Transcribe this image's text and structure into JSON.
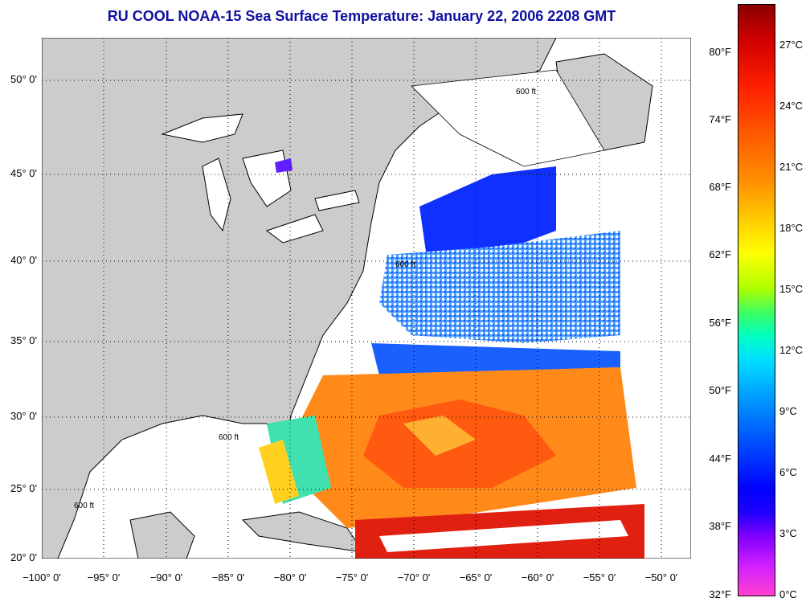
{
  "title": "RU COOL  NOAA-15  Sea Surface Temperature:  January 22, 2006 2208 GMT",
  "lat_labels": [
    "50° 0'",
    "45° 0'",
    "40° 0'",
    "35° 0'",
    "30° 0'",
    "25° 0'",
    "20° 0'"
  ],
  "lon_labels": [
    "−100° 0'",
    "−95° 0'",
    "−90° 0'",
    "−85° 0'",
    "−80° 0'",
    "−75° 0'",
    "−70° 0'",
    "−65° 0'",
    "−60° 0'",
    "−55° 0'",
    "−50° 0'"
  ],
  "f_labels": [
    "80°F",
    "74°F",
    "68°F",
    "62°F",
    "56°F",
    "50°F",
    "44°F",
    "38°F",
    "32°F"
  ],
  "c_labels": [
    "27°C",
    "24°C",
    "21°C",
    "18°C",
    "15°C",
    "12°C",
    "9°C",
    "6°C",
    "3°C",
    "0°C"
  ],
  "isobath_label": "600 ft",
  "colors": {
    "title": "#1010a0",
    "land": "#cccccc",
    "no_data": "#ffffff"
  }
}
